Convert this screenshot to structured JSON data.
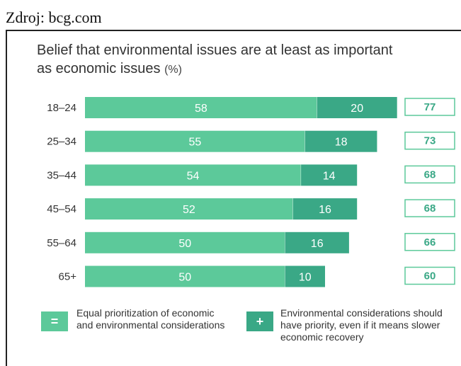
{
  "source_label": "Zdroj: bcg.com",
  "chart_data": {
    "type": "bar",
    "stacked": true,
    "orientation": "horizontal",
    "title": "Belief that environmental issues are at least as important as economic issues",
    "title_unit": "(%)",
    "categories": [
      "18–24",
      "25–34",
      "35–44",
      "45–54",
      "55–64",
      "65+"
    ],
    "series": [
      {
        "name": "Equal prioritization of economic and environmental considerations",
        "symbol": "=",
        "color": "#5cc99a",
        "values": [
          58,
          55,
          54,
          52,
          50,
          50
        ]
      },
      {
        "name": "Environmental considerations should have priority, even if it means slower economic recovery",
        "symbol": "+",
        "color": "#3aa886",
        "values": [
          20,
          18,
          14,
          16,
          16,
          10
        ]
      }
    ],
    "totals": [
      77,
      73,
      68,
      68,
      66,
      60
    ],
    "total_box_color": "#5cc99a"
  }
}
